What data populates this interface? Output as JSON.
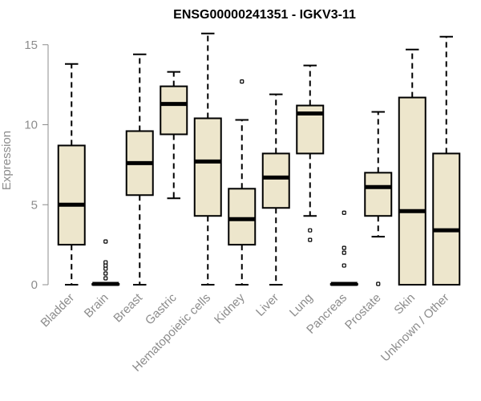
{
  "chart_data": {
    "type": "boxplot",
    "title": "ENSG00000241351 - IGKV3-11",
    "xlabel": "",
    "ylabel": "Expression",
    "ylim": [
      0,
      15.6
    ],
    "yticks": [
      0,
      5,
      10,
      15
    ],
    "box_fill": "#ede6cc",
    "series": [
      {
        "name": "Bladder",
        "min": 0,
        "q1": 2.5,
        "median": 5.0,
        "q3": 8.7,
        "max": 13.8,
        "outliers": []
      },
      {
        "name": "Brain",
        "min": 0,
        "q1": 0,
        "median": 0.05,
        "q3": 0.05,
        "max": 0.1,
        "outliers": [
          0.4,
          0.7,
          1.0,
          1.2,
          1.4,
          2.7
        ]
      },
      {
        "name": "Breast",
        "min": 0,
        "q1": 5.6,
        "median": 7.6,
        "q3": 9.6,
        "max": 14.4,
        "outliers": []
      },
      {
        "name": "Gastric",
        "min": 5.4,
        "q1": 9.4,
        "median": 11.3,
        "q3": 12.4,
        "max": 13.3,
        "outliers": []
      },
      {
        "name": "Hematopoietic cells",
        "min": 0,
        "q1": 4.3,
        "median": 7.7,
        "q3": 10.4,
        "max": 15.7,
        "outliers": []
      },
      {
        "name": "Kidney",
        "min": 0,
        "q1": 2.5,
        "median": 4.1,
        "q3": 6.0,
        "max": 10.3,
        "outliers": [
          12.7
        ]
      },
      {
        "name": "Liver",
        "min": 0,
        "q1": 4.8,
        "median": 6.7,
        "q3": 8.2,
        "max": 11.9,
        "outliers": []
      },
      {
        "name": "Lung",
        "min": 4.3,
        "q1": 8.2,
        "median": 10.7,
        "q3": 11.2,
        "max": 13.7,
        "outliers": [
          2.8,
          3.4
        ]
      },
      {
        "name": "Pancreas",
        "min": 0,
        "q1": 0,
        "median": 0.05,
        "q3": 0.05,
        "max": 0.1,
        "outliers": [
          1.2,
          2.0,
          2.3,
          4.5
        ]
      },
      {
        "name": "Prostate",
        "min": 3.0,
        "q1": 4.3,
        "median": 6.1,
        "q3": 7.0,
        "max": 10.8,
        "outliers": [
          0.05
        ]
      },
      {
        "name": "Skin",
        "min": 0,
        "q1": 0,
        "median": 4.6,
        "q3": 11.7,
        "max": 14.7,
        "outliers": []
      },
      {
        "name": "Unknown / Other",
        "min": 0,
        "q1": 0,
        "median": 3.4,
        "q3": 8.2,
        "max": 15.5,
        "outliers": []
      }
    ]
  }
}
